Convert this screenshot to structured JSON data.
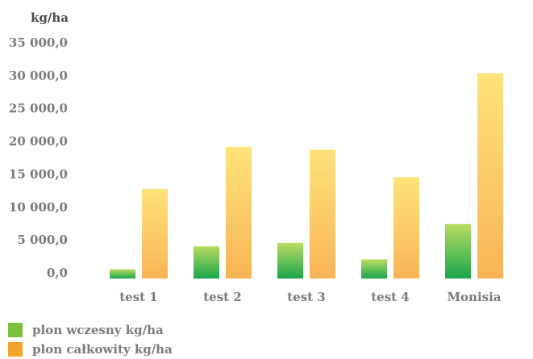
{
  "chart_data": {
    "type": "bar",
    "title": "",
    "xlabel": "",
    "ylabel": "kg/ha",
    "categories": [
      "test 1",
      "test 2",
      "test 3",
      "test 4",
      "Monisia"
    ],
    "series": [
      {
        "name": "plon wczesny kg/ha",
        "values": [
          1400,
          4900,
          5400,
          2900,
          8300
        ]
      },
      {
        "name": "plon całkowity kg/ha",
        "values": [
          13600,
          20000,
          19600,
          15400,
          31200
        ]
      }
    ],
    "y_ticks": [
      "0,0",
      "5 000,0",
      "10 000,0",
      "15 000,0",
      "20 000,0",
      "25 000,0",
      "30 000,0",
      "35 000,0"
    ],
    "ylim": [
      0,
      35000
    ],
    "grid": false,
    "legend_position": "bottom-left",
    "colors": {
      "early_top": "#b8dc62",
      "early_bottom": "#19a64a",
      "early_legend": "#7bbf3a",
      "total_top": "#fde37a",
      "total_bottom": "#f8b455",
      "total_legend": "#f3a52b",
      "text": "#7a7a7a",
      "ylabel_text": "#4a4a4a"
    }
  }
}
